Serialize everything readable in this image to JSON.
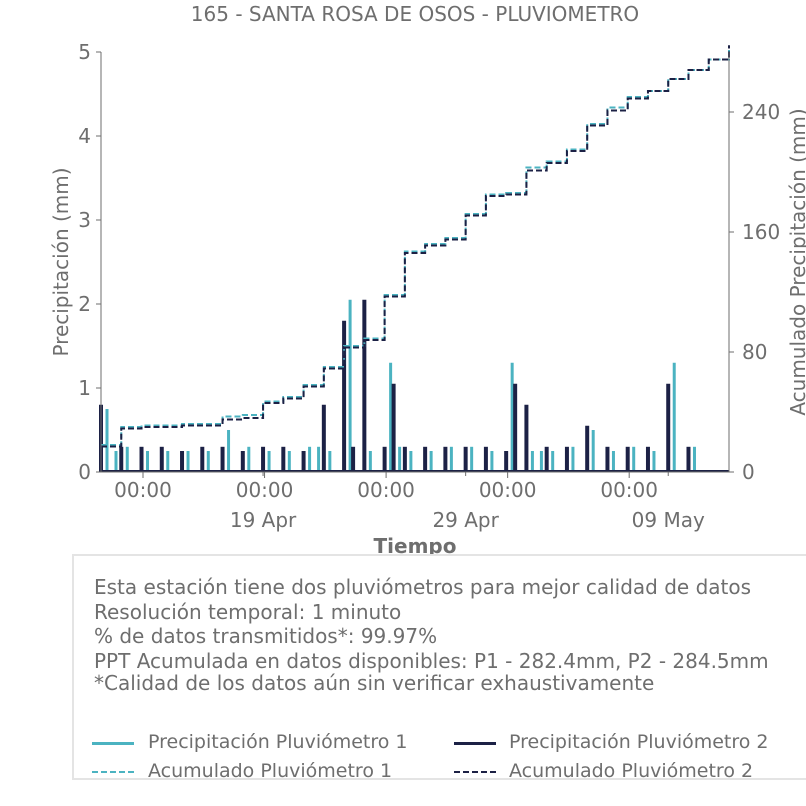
{
  "chart_data": {
    "type": "line",
    "title": "165 - SANTA ROSA DE OSOS - PLUVIOMETRO",
    "xlabel": "Tiempo",
    "ylabel": "Precipitación (mm)",
    "y2label": "Acumulado Precipitación (mm)",
    "ylim": [
      0,
      5
    ],
    "y2lim": [
      0,
      280
    ],
    "yticks": [
      "0",
      "1",
      "2",
      "3",
      "4",
      "5"
    ],
    "y2ticks": [
      "0",
      "80",
      "160",
      "240"
    ],
    "xlim": [
      "2025-04-11",
      "2025-05-12"
    ],
    "xticks_major": [
      {
        "label": "00:00",
        "date": "2025-04-11"
      },
      {
        "label": "00:00",
        "date": "2025-04-17"
      },
      {
        "label": "00:00",
        "date": "2025-04-23"
      },
      {
        "label": "00:00",
        "date": "2025-04-29"
      },
      {
        "label": "00:00",
        "date": "2025-05-05"
      }
    ],
    "xticks_minor": [
      {
        "label": "19 Apr",
        "date": "2025-04-19"
      },
      {
        "label": "29 Apr",
        "date": "2025-04-29"
      },
      {
        "label": "09 May",
        "date": "2025-05-09"
      }
    ],
    "grid": false,
    "series": [
      {
        "name": "Precipitación Pluviómetro 1",
        "kind": "spikes",
        "axis": "left",
        "color": "#4bb3c1",
        "x": [
          "2025-04-11",
          "2025-04-11",
          "2025-04-12",
          "2025-04-13",
          "2025-04-14",
          "2025-04-15",
          "2025-04-16",
          "2025-04-17",
          "2025-04-18",
          "2025-04-19",
          "2025-04-20",
          "2025-04-21",
          "2025-04-21",
          "2025-04-22",
          "2025-04-23",
          "2025-04-24",
          "2025-04-25",
          "2025-04-25",
          "2025-04-26",
          "2025-04-27",
          "2025-04-28",
          "2025-04-29",
          "2025-04-30",
          "2025-05-01",
          "2025-05-02",
          "2025-05-02",
          "2025-05-03",
          "2025-05-04",
          "2025-05-05",
          "2025-05-06",
          "2025-05-07",
          "2025-05-08",
          "2025-05-09",
          "2025-05-10"
        ],
        "values": [
          0.75,
          0.25,
          0.3,
          0.25,
          0.25,
          0.25,
          0.25,
          0.5,
          0.3,
          0.25,
          0.25,
          0.3,
          0.3,
          0.25,
          2.05,
          0.25,
          1.3,
          0.3,
          0.25,
          0.25,
          0.3,
          0.3,
          0.25,
          1.3,
          0.25,
          0.25,
          0.25,
          0.3,
          0.5,
          0.25,
          0.3,
          0.25,
          1.3,
          0.3
        ]
      },
      {
        "name": "Precipitación Pluviómetro 2",
        "kind": "spikes",
        "axis": "left",
        "color": "#1c2145",
        "x": [
          "2025-04-11",
          "2025-04-12",
          "2025-04-13",
          "2025-04-14",
          "2025-04-15",
          "2025-04-16",
          "2025-04-17",
          "2025-04-18",
          "2025-04-19",
          "2025-04-20",
          "2025-04-21",
          "2025-04-22",
          "2025-04-23",
          "2025-04-23",
          "2025-04-24",
          "2025-04-25",
          "2025-04-25",
          "2025-04-26",
          "2025-04-27",
          "2025-04-28",
          "2025-04-29",
          "2025-04-30",
          "2025-05-01",
          "2025-05-01",
          "2025-05-02",
          "2025-05-03",
          "2025-05-04",
          "2025-05-05",
          "2025-05-06",
          "2025-05-07",
          "2025-05-08",
          "2025-05-09",
          "2025-05-10"
        ],
        "values": [
          0.8,
          0.3,
          0.3,
          0.3,
          0.25,
          0.3,
          0.3,
          0.25,
          0.3,
          0.3,
          0.25,
          0.8,
          1.8,
          0.3,
          2.05,
          0.3,
          1.05,
          0.3,
          0.3,
          0.3,
          0.3,
          0.3,
          0.25,
          1.05,
          0.8,
          0.3,
          0.3,
          0.55,
          0.3,
          0.3,
          0.3,
          1.05,
          0.3
        ]
      },
      {
        "name": "Acumulado Pluviómetro 1",
        "kind": "cumulative",
        "axis": "right",
        "color": "#4bb3c1",
        "dash": true,
        "x": [
          "2025-04-11",
          "2025-04-12",
          "2025-04-13",
          "2025-04-15",
          "2025-04-17",
          "2025-04-18",
          "2025-04-19",
          "2025-04-20",
          "2025-04-21",
          "2025-04-22",
          "2025-04-23",
          "2025-04-24",
          "2025-04-25",
          "2025-04-26",
          "2025-04-27",
          "2025-04-28",
          "2025-04-29",
          "2025-04-30",
          "2025-05-01",
          "2025-05-02",
          "2025-05-03",
          "2025-05-04",
          "2025-05-05",
          "2025-05-06",
          "2025-05-07",
          "2025-05-08",
          "2025-05-09",
          "2025-05-10",
          "2025-05-11",
          "2025-05-12"
        ],
        "values": [
          18,
          30,
          31,
          32,
          37,
          38,
          47,
          50,
          58,
          70,
          84,
          89,
          118,
          147,
          152,
          156,
          172,
          185,
          186,
          203,
          207,
          215,
          232,
          243,
          250,
          254,
          262,
          268,
          275,
          282.4
        ]
      },
      {
        "name": "Acumulado Pluviómetro 2",
        "kind": "cumulative",
        "axis": "right",
        "color": "#1c2145",
        "dash": true,
        "x": [
          "2025-04-11",
          "2025-04-12",
          "2025-04-13",
          "2025-04-15",
          "2025-04-17",
          "2025-04-18",
          "2025-04-19",
          "2025-04-20",
          "2025-04-21",
          "2025-04-22",
          "2025-04-23",
          "2025-04-24",
          "2025-04-25",
          "2025-04-26",
          "2025-04-27",
          "2025-04-28",
          "2025-04-29",
          "2025-04-30",
          "2025-05-01",
          "2025-05-02",
          "2025-05-03",
          "2025-05-04",
          "2025-05-05",
          "2025-05-06",
          "2025-05-07",
          "2025-05-08",
          "2025-05-09",
          "2025-05-10",
          "2025-05-11",
          "2025-05-12"
        ],
        "values": [
          17,
          29,
          30,
          31,
          35,
          36,
          46,
          49,
          57,
          69,
          83,
          88,
          117,
          146,
          151,
          155,
          171,
          184,
          185,
          201,
          206,
          214,
          231,
          241,
          249,
          254,
          262,
          268,
          275,
          284.5
        ]
      }
    ]
  },
  "info": {
    "lines": [
      "Esta estación tiene dos pluviómetros para mejor calidad de datos",
      "Resolución temporal: 1 minuto",
      "% de datos transmitidos*: 99.97%",
      "PPT Acumulada en datos disponibles: P1 - 282.4mm, P2 - 284.5mm",
      "*Calidad de los datos aún sin verificar exhaustivamente"
    ]
  },
  "legend": {
    "p1": "Precipitación Pluviómetro 1",
    "p2": "Precipitación Pluviómetro 2",
    "a1": "Acumulado Pluviómetro 1",
    "a2": "Acumulado Pluviómetro 2"
  },
  "colors": {
    "p1": "#4bb3c1",
    "p2": "#1c2145",
    "axis": "#6e6e6e"
  }
}
